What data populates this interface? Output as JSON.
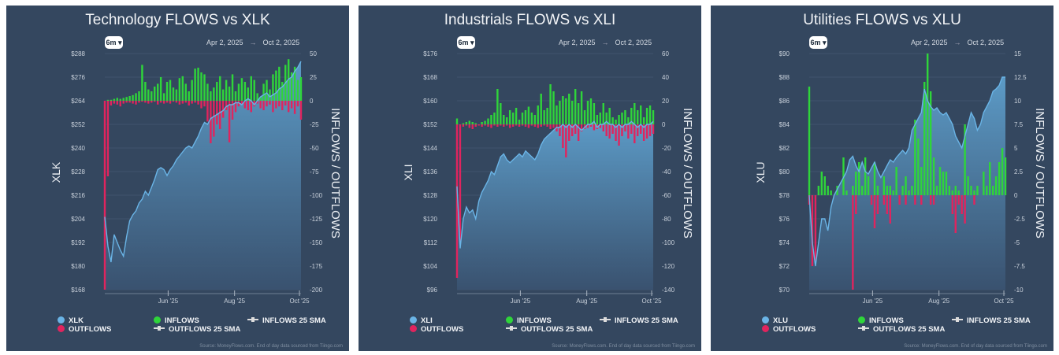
{
  "common": {
    "range_button": "6m",
    "date_from": "Apr 2, 2025",
    "date_sep": "→",
    "date_to": "Oct 2, 2025",
    "right_axis_title": "INFLOWS / OUTFLOWS",
    "legend_inflows": "INFLOWS",
    "legend_outflows": "OUTFLOWS",
    "legend_inflows_sma": "INFLOWS 25 SMA",
    "legend_outflows_sma": "OUTFLOWS 25 SMA",
    "source": "Source: MoneyFlows.com. End of day data sourced from Tiingo.com",
    "colors": {
      "background": "#34475f",
      "price": "#6ab4e6",
      "inflows": "#2fd53a",
      "outflows": "#e0245e"
    }
  },
  "chart_data": [
    {
      "type": "bar+area",
      "title": "Technology FLOWS vs XLK",
      "ylabel": "XLK",
      "y2label": "INFLOWS / OUTFLOWS",
      "ylim": [
        168,
        288
      ],
      "yticks": [
        "$168",
        "$180",
        "$192",
        "$204",
        "$216",
        "$228",
        "$240",
        "$252",
        "$264",
        "$276",
        "$288"
      ],
      "y2lim": [
        -200,
        50
      ],
      "y2ticks": [
        "-200",
        "-175",
        "-150",
        "-125",
        "-100",
        "-75",
        "-50",
        "-25",
        "0",
        "25",
        "50"
      ],
      "xticks": [
        {
          "label": "Jun '25",
          "day": 41
        },
        {
          "label": "Aug '25",
          "day": 84
        },
        {
          "label": "Oct '25",
          "day": 126
        }
      ],
      "days": 128,
      "price": [
        205,
        190,
        182,
        196,
        192,
        188,
        185,
        195,
        203,
        206,
        208,
        212,
        214,
        218,
        216,
        220,
        224,
        229,
        230,
        229,
        226,
        229,
        231,
        234,
        236,
        238,
        240,
        241,
        240,
        243,
        246,
        250,
        253,
        252,
        255,
        256,
        257,
        258,
        259,
        261,
        262,
        262,
        263,
        263,
        262,
        264,
        265,
        264,
        262,
        264,
        266,
        267,
        268,
        266,
        267,
        268,
        270,
        271,
        273,
        275,
        276,
        279,
        281,
        284
      ],
      "inflows": [
        0,
        1,
        1,
        2,
        3,
        2,
        3,
        4,
        5,
        6,
        8,
        10,
        38,
        20,
        12,
        10,
        15,
        18,
        25,
        8,
        20,
        22,
        14,
        12,
        24,
        26,
        18,
        10,
        22,
        34,
        35,
        30,
        28,
        18,
        10,
        14,
        20,
        26,
        12,
        22,
        15,
        28,
        10,
        18,
        24,
        20,
        14,
        26,
        22,
        8,
        4,
        18,
        22,
        12,
        28,
        32,
        36,
        20,
        38,
        44,
        30,
        36,
        22,
        25
      ],
      "outflows": [
        -200,
        -80,
        -5,
        -3,
        -4,
        -6,
        -3,
        -2,
        -2,
        -3,
        -4,
        -2,
        -1,
        -2,
        -3,
        -2,
        -1,
        -4,
        -2,
        -3,
        -2,
        -3,
        -1,
        -2,
        -4,
        -3,
        -2,
        -5,
        -3,
        -2,
        -4,
        -8,
        -6,
        -22,
        -45,
        -38,
        -25,
        -30,
        -18,
        -10,
        -44,
        -20,
        -12,
        -6,
        -4,
        -8,
        -10,
        -12,
        -6,
        -3,
        -8,
        -10,
        -6,
        -4,
        -12,
        -8,
        -6,
        -10,
        -5,
        -12,
        -8,
        -14,
        -6,
        -20
      ],
      "legend": [
        "XLK"
      ]
    },
    {
      "type": "bar+area",
      "title": "Industrials FLOWS vs XLI",
      "ylabel": "XLI",
      "y2label": "INFLOWS / OUTFLOWS",
      "ylim": [
        96,
        176
      ],
      "yticks": [
        "$96",
        "$104",
        "$112",
        "$120",
        "$128",
        "$136",
        "$144",
        "$152",
        "$160",
        "$168",
        "$176"
      ],
      "y2lim": [
        -140,
        60
      ],
      "y2ticks": [
        "-140",
        "-120",
        "-100",
        "-80",
        "-60",
        "-40",
        "-20",
        "0",
        "20",
        "40",
        "60"
      ],
      "xticks": [
        {
          "label": "Jun '25",
          "day": 41
        },
        {
          "label": "Aug '25",
          "day": 84
        },
        {
          "label": "Oct '25",
          "day": 126
        }
      ],
      "days": 128,
      "price": [
        131,
        110,
        120,
        124,
        122,
        123,
        120,
        126,
        129,
        131,
        133,
        136,
        135,
        138,
        141,
        142,
        140,
        139,
        140,
        141,
        142,
        141,
        143,
        142,
        141,
        140,
        142,
        145,
        147,
        148,
        149,
        150,
        151,
        151,
        152,
        151,
        152,
        151,
        152,
        151,
        150,
        151,
        152,
        152,
        153,
        151,
        152,
        152,
        153,
        152,
        152,
        151,
        152,
        151,
        152,
        152,
        153,
        152,
        151,
        152,
        151,
        152,
        152,
        153
      ],
      "inflows": [
        5,
        0,
        1,
        2,
        3,
        2,
        1,
        0,
        2,
        3,
        5,
        8,
        10,
        30,
        18,
        8,
        6,
        12,
        10,
        14,
        4,
        10,
        12,
        15,
        10,
        8,
        16,
        26,
        12,
        14,
        34,
        28,
        16,
        20,
        24,
        22,
        26,
        20,
        30,
        18,
        28,
        12,
        20,
        22,
        18,
        8,
        10,
        18,
        10,
        14,
        6,
        4,
        8,
        10,
        12,
        6,
        14,
        18,
        12,
        16,
        6,
        14,
        16,
        12
      ],
      "outflows": [
        -130,
        -100,
        -2,
        -1,
        -3,
        -4,
        -2,
        -1,
        -2,
        -1,
        -2,
        -3,
        -1,
        -2,
        -1,
        -2,
        -1,
        -3,
        -2,
        -1,
        -2,
        -1,
        -2,
        -3,
        -1,
        -2,
        -3,
        -2,
        -1,
        -2,
        -4,
        -3,
        -6,
        -10,
        -20,
        -28,
        -14,
        -10,
        -8,
        -14,
        -6,
        -4,
        -3,
        -2,
        -5,
        -4,
        -3,
        -6,
        -10,
        -12,
        -8,
        -14,
        -18,
        -10,
        -6,
        -12,
        -8,
        -16,
        -10,
        -8,
        -14,
        -12,
        -10,
        -8
      ],
      "legend": [
        "XLI"
      ]
    },
    {
      "type": "bar+area",
      "title": "Utilities FLOWS vs XLU",
      "ylabel": "XLU",
      "y2label": "INFLOWS / OUTFLOWS",
      "ylim": [
        70,
        90
      ],
      "yticks": [
        "$70",
        "$72",
        "$74",
        "$76",
        "$78",
        "$80",
        "$82",
        "$84",
        "$86",
        "$88",
        "$90"
      ],
      "y2lim": [
        -10,
        15
      ],
      "y2ticks": [
        "-10",
        "-7.5",
        "-5",
        "-2.5",
        "0",
        "2.5",
        "5",
        "7.5",
        "10",
        "12.5",
        "15"
      ],
      "xticks": [
        {
          "label": "Jun '25",
          "day": 41
        },
        {
          "label": "Aug '25",
          "day": 84
        },
        {
          "label": "Oct '25",
          "day": 126
        }
      ],
      "days": 128,
      "price": [
        78,
        74,
        72,
        74,
        76,
        76,
        75,
        77,
        78,
        78.5,
        79,
        79.5,
        80,
        81,
        81.3,
        80.5,
        80,
        80.8,
        80,
        79.8,
        80.3,
        80.8,
        80,
        79.5,
        80,
        80.5,
        81,
        80.8,
        81.2,
        81.5,
        81.8,
        81.5,
        82,
        83.5,
        84,
        84.5,
        85,
        87,
        86,
        85.5,
        85.2,
        85.4,
        85,
        84.8,
        85,
        84.5,
        84,
        83,
        82.5,
        82,
        83,
        84,
        85,
        84.5,
        83.5,
        84,
        85,
        85.5,
        86,
        86.8,
        87,
        87.3,
        88,
        88
      ],
      "inflows": [
        11.5,
        0,
        0,
        1,
        2.5,
        2,
        1,
        0.5,
        0,
        1,
        0,
        4,
        0.5,
        0,
        1,
        2.5,
        3.5,
        1,
        4,
        2,
        0,
        3.5,
        1,
        0,
        2,
        1,
        1,
        0.5,
        3,
        0,
        1,
        2,
        0.5,
        1,
        8,
        6,
        3,
        12,
        15,
        11,
        4,
        1,
        3,
        2.5,
        2.5,
        1,
        0.5,
        1,
        0.5,
        0,
        7.5,
        2,
        1,
        0.5,
        1,
        0,
        2.5,
        1,
        3.5,
        1,
        2,
        3.5,
        5,
        4
      ],
      "outflows": [
        -1,
        -7.5,
        -7,
        0,
        0,
        0,
        0,
        0,
        0,
        0,
        0,
        0,
        0,
        0,
        -10,
        -2,
        0,
        0,
        0,
        0,
        -1,
        -3.5,
        -2,
        0,
        -1,
        -2,
        -3,
        0,
        0,
        -1,
        0,
        -1,
        0,
        0,
        -1,
        0,
        -1,
        0,
        0,
        -1,
        -1,
        0,
        0,
        0,
        0,
        0,
        -2,
        -4,
        -1,
        -2,
        -3,
        0,
        0,
        -1,
        0,
        0,
        0,
        0,
        0,
        0,
        0,
        0,
        0,
        0
      ],
      "legend": [
        "XLU"
      ]
    }
  ]
}
